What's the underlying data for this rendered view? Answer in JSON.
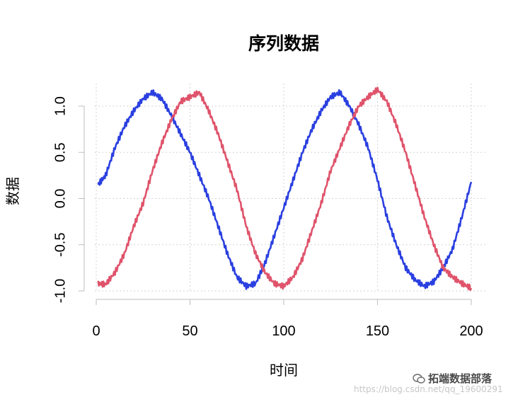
{
  "chart_data": {
    "type": "line",
    "title": "序列数据",
    "xlabel": "时间",
    "ylabel": "数据",
    "xlim": [
      0,
      200
    ],
    "ylim": [
      -1.0,
      1.2
    ],
    "x_ticks": [
      0,
      50,
      100,
      150,
      200
    ],
    "x_tick_labels": [
      "0",
      "50",
      "100",
      "150",
      "200"
    ],
    "y_ticks": [
      -1.0,
      -0.5,
      0.0,
      0.5,
      1.0
    ],
    "y_tick_labels": [
      "-1.0",
      "-0.5",
      "0.0",
      "0.5",
      "1.0"
    ],
    "grid": true,
    "series": [
      {
        "color": "#2a3fe0",
        "x": [
          1,
          5,
          10,
          15,
          20,
          25,
          30,
          35,
          40,
          45,
          50,
          55,
          60,
          65,
          70,
          75,
          80,
          85,
          90,
          95,
          100,
          105,
          110,
          115,
          120,
          125,
          130,
          135,
          140,
          145,
          150,
          155,
          160,
          165,
          170,
          175,
          180,
          185,
          190,
          195,
          200
        ],
        "y": [
          0.15,
          0.25,
          0.55,
          0.78,
          0.95,
          1.08,
          1.15,
          1.08,
          0.9,
          0.7,
          0.5,
          0.25,
          0.0,
          -0.3,
          -0.6,
          -0.85,
          -0.95,
          -0.92,
          -0.7,
          -0.4,
          -0.1,
          0.2,
          0.5,
          0.75,
          0.95,
          1.1,
          1.15,
          1.0,
          0.8,
          0.55,
          0.2,
          -0.2,
          -0.5,
          -0.75,
          -0.88,
          -0.95,
          -0.9,
          -0.75,
          -0.55,
          -0.2,
          0.18
        ]
      },
      {
        "color": "#df536b",
        "x": [
          1,
          5,
          10,
          15,
          20,
          25,
          30,
          35,
          40,
          45,
          50,
          55,
          60,
          65,
          70,
          75,
          80,
          85,
          90,
          95,
          100,
          105,
          110,
          115,
          120,
          125,
          130,
          135,
          140,
          145,
          150,
          155,
          160,
          165,
          170,
          175,
          180,
          185,
          190,
          195,
          200
        ],
        "y": [
          -0.92,
          -0.93,
          -0.8,
          -0.6,
          -0.3,
          -0.05,
          0.3,
          0.6,
          0.85,
          1.05,
          1.1,
          1.15,
          0.95,
          0.7,
          0.4,
          0.1,
          -0.3,
          -0.6,
          -0.8,
          -0.92,
          -0.95,
          -0.85,
          -0.65,
          -0.35,
          -0.05,
          0.3,
          0.55,
          0.8,
          1.0,
          1.1,
          1.18,
          1.05,
          0.8,
          0.5,
          0.15,
          -0.2,
          -0.5,
          -0.75,
          -0.85,
          -0.92,
          -0.97
        ]
      }
    ]
  },
  "watermark": {
    "logo_text": "拓端数据部落",
    "url_text": "https://blog.csdn.net/qq_19600291",
    "icon": "wechat-icon"
  }
}
